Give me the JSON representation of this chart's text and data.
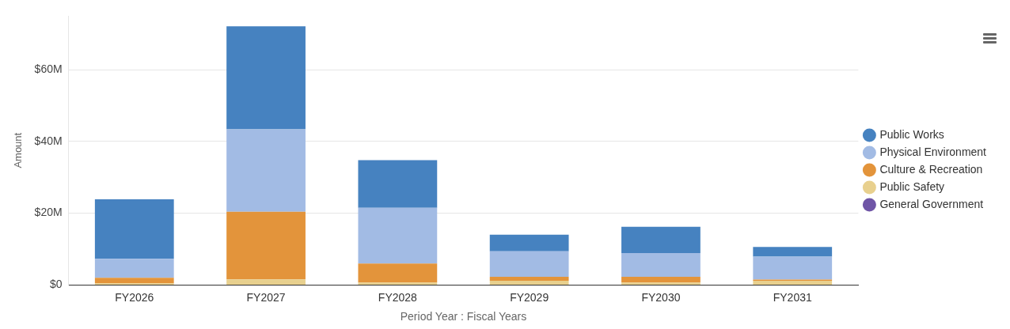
{
  "chart_data": {
    "type": "bar",
    "stacked": true,
    "xlabel": "Period Year : Fiscal Years",
    "ylabel": "Amount",
    "categories": [
      "FY2026",
      "FY2027",
      "FY2028",
      "FY2029",
      "FY2030",
      "FY2031"
    ],
    "series": [
      {
        "name": "General Government",
        "color": "#6f55a6",
        "values": [
          0,
          0,
          0,
          0,
          0,
          0
        ]
      },
      {
        "name": "Public Safety",
        "color": "#e8d08e",
        "values": [
          0.5,
          1.6,
          0.7,
          1.2,
          0.7,
          1.2
        ]
      },
      {
        "name": "Culture & Recreation",
        "color": "#e3943b",
        "values": [
          1.5,
          18.8,
          5.3,
          1.1,
          1.6,
          0.3
        ]
      },
      {
        "name": "Physical Environment",
        "color": "#a2bbe4",
        "values": [
          5.3,
          23.0,
          15.5,
          7.1,
          6.6,
          6.4
        ]
      },
      {
        "name": "Public Works",
        "color": "#4682c0",
        "values": [
          16.6,
          28.7,
          13.3,
          4.6,
          7.3,
          2.7
        ]
      }
    ],
    "ylim": [
      0,
      75
    ],
    "yticks": [
      {
        "value": 0,
        "label": "$0"
      },
      {
        "value": 20,
        "label": "$20M"
      },
      {
        "value": 40,
        "label": "$40M"
      },
      {
        "value": 60,
        "label": "$60M"
      }
    ],
    "grid": "y",
    "legend": "right",
    "marker": "circle"
  }
}
